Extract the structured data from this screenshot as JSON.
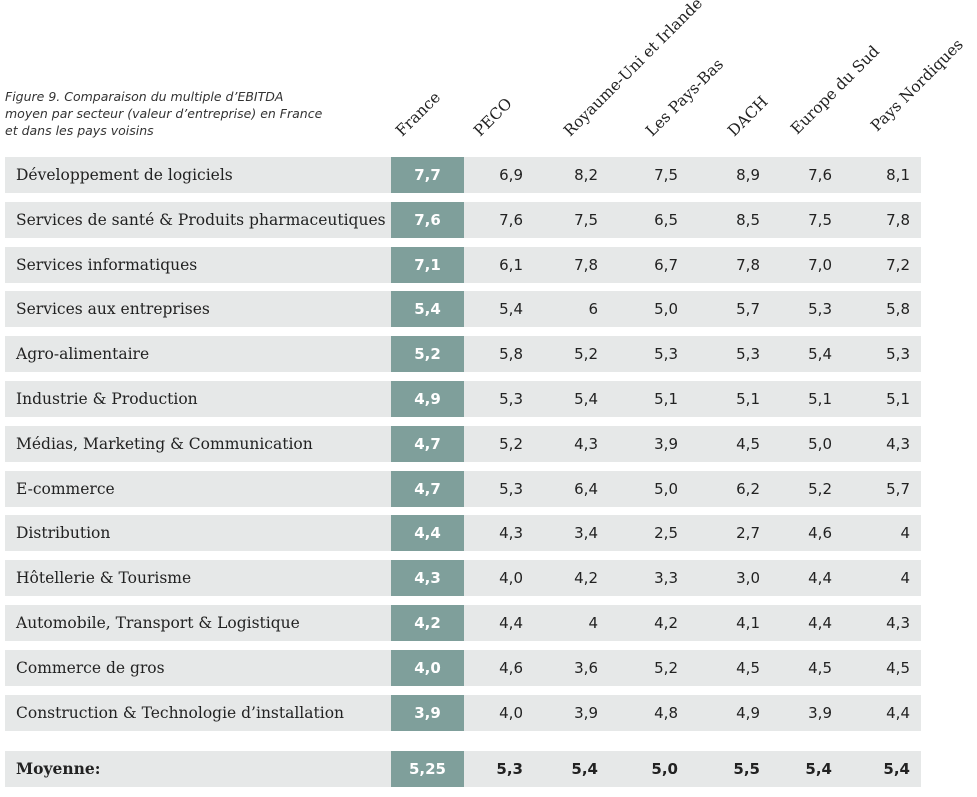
{
  "caption": [
    "Figure 9. Comparaison du multiple d’EBITDA",
    "moyen par secteur (valeur d’entreprise) en France",
    "et dans les pays voisins"
  ],
  "table": {
    "columns": [
      "France",
      "PECO",
      "Royaume-Uni et Irlande",
      "Les Pays-Bas",
      "DACH",
      "Europe du Sud",
      "Pays Nordiques"
    ],
    "rows": [
      [
        "Développement de logiciels",
        "7,7",
        "6,9",
        "8,2",
        "7,5",
        "8,9",
        "7,6",
        "8,1"
      ],
      [
        "Services de santé & Produits pharmaceutiques",
        "7,6",
        "7,6",
        "7,5",
        "6,5",
        "8,5",
        "7,5",
        "7,8"
      ],
      [
        "Services informatiques",
        "7,1",
        "6,1",
        "7,8",
        "6,7",
        "7,8",
        "7,0",
        "7,2"
      ],
      [
        "Services aux entreprises",
        "5,4",
        "5,4",
        "6",
        "5,0",
        "5,7",
        "5,3",
        "5,8"
      ],
      [
        "Agro-alimentaire",
        "5,2",
        "5,8",
        "5,2",
        "5,3",
        "5,3",
        "5,4",
        "5,3"
      ],
      [
        "Industrie & Production",
        "4,9",
        "5,3",
        "5,4",
        "5,1",
        "5,1",
        "5,1",
        "5,1"
      ],
      [
        "Médias, Marketing & Communication",
        "4,7",
        "5,2",
        "4,3",
        "3,9",
        "4,5",
        "5,0",
        "4,3"
      ],
      [
        "E-commerce",
        "4,7",
        "5,3",
        "6,4",
        "5,0",
        "6,2",
        "5,2",
        "5,7"
      ],
      [
        "Distribution",
        "4,4",
        "4,3",
        "3,4",
        "2,5",
        "2,7",
        "4,6",
        "4"
      ],
      [
        "Hôtellerie & Tourisme",
        "4,3",
        "4,0",
        "4,2",
        "3,3",
        "3,0",
        "4,4",
        "4"
      ],
      [
        "Automobile, Transport & Logistique",
        "4,2",
        "4,4",
        "4",
        "4,2",
        "4,1",
        "4,4",
        "4,3"
      ],
      [
        "Commerce de gros",
        "4,0",
        "4,6",
        "3,6",
        "5,2",
        "4,5",
        "4,5",
        "4,5"
      ],
      [
        "Construction & Technologie d’installation",
        "3,9",
        "4,0",
        "3,9",
        "4,8",
        "4,9",
        "3,9",
        "4,4"
      ]
    ],
    "total": [
      "Moyenne:",
      "5,25",
      "5,3",
      "5,4",
      "5,0",
      "5,5",
      "5,4",
      "5,4"
    ]
  }
}
